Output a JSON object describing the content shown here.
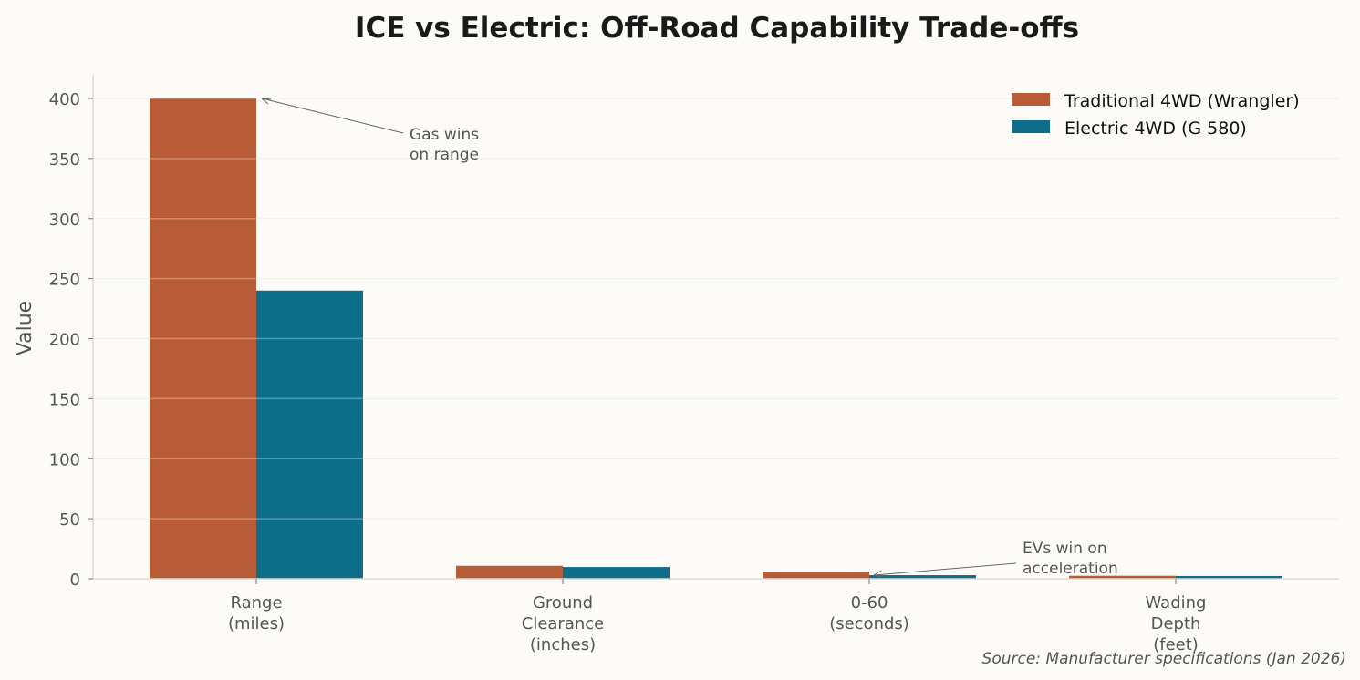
{
  "chart_data": {
    "type": "bar",
    "title": "ICE vs Electric: Off-Road Capability Trade-offs",
    "xlabel": "",
    "ylabel": "Value",
    "ylim": [
      0,
      420
    ],
    "yticks": [
      0,
      50,
      100,
      150,
      200,
      250,
      300,
      350,
      400
    ],
    "grid": "horizontal",
    "legend_position": "top-right",
    "categories": [
      [
        "Range",
        "(miles)"
      ],
      [
        "Ground",
        "Clearance",
        "(inches)"
      ],
      [
        "0-60",
        "(seconds)"
      ],
      [
        "Wading",
        "Depth",
        "(feet)"
      ]
    ],
    "series": [
      {
        "name": "Traditional 4WD (Wrangler)",
        "color": "#b85c37",
        "values": [
          400,
          10.8,
          6.0,
          2.5
        ]
      },
      {
        "name": "Electric 4WD (G 580)",
        "color": "#0d6e8a",
        "values": [
          240,
          9.8,
          3.0,
          2.3
        ]
      }
    ],
    "annotations": [
      {
        "text": [
          "Gas wins",
          "on range"
        ],
        "target_category": 0,
        "target_series": 0,
        "target_value": 400
      },
      {
        "text": [
          "EVs win on",
          "acceleration"
        ],
        "target_category": 2,
        "target_series": 1,
        "target_value": 3.0
      }
    ],
    "source": "Source: Manufacturer specifications (Jan 2026)"
  }
}
